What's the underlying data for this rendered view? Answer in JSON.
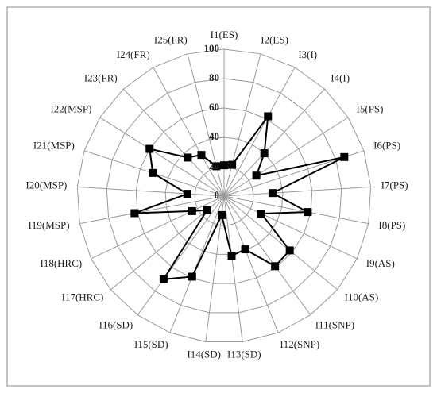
{
  "chart_data": {
    "type": "radar",
    "categories": [
      "I1(ES)",
      "I2(ES)",
      "I3(I)",
      "I4(I)",
      "I5(PS)",
      "I6(PS)",
      "I7(PS)",
      "I8(PS)",
      "I9(AS)",
      "I10(AS)",
      "I11(SNP)",
      "I12(SNP)",
      "I13(SD)",
      "I14(SD)",
      "I15(SD)",
      "I16(SD)",
      "I17(HRC)",
      "I18(HRC)",
      "I19(MSP)",
      "I20(MSP)",
      "I21(MSP)",
      "I22(MSP)",
      "I23(FR)",
      "I24(FR)",
      "I25(FR)"
    ],
    "values": [
      21,
      22,
      62,
      40,
      26,
      86,
      33,
      58,
      28,
      58,
      59,
      39,
      41,
      13,
      59,
      70,
      15,
      24,
      62,
      25,
      51,
      60,
      36,
      32,
      21
    ],
    "color": "#000000",
    "rlim": [
      0,
      100
    ],
    "rticks": [
      0,
      20,
      40,
      60,
      80,
      100
    ],
    "grid": true
  }
}
